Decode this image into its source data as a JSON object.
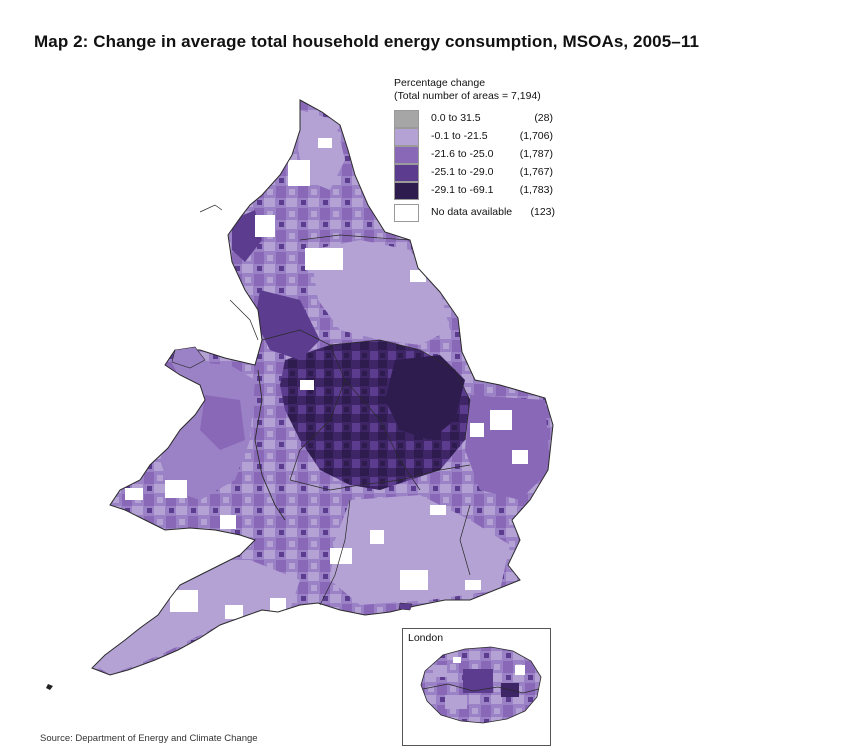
{
  "title": "Map 2: Change in average total household energy consumption, MSOAs, 2005–11",
  "legend": {
    "heading_line1": "Percentage change",
    "heading_line2": "(Total number of areas = 7,194)",
    "items": [
      {
        "range": "0.0 to 31.5",
        "count": "(28)",
        "color": "#a6a6a6"
      },
      {
        "range": "-0.1 to -21.5",
        "count": "(1,706)",
        "color": "#b3a2d3"
      },
      {
        "range": "-21.6 to -25.0",
        "count": "(1,787)",
        "color": "#8a68b8"
      },
      {
        "range": "-25.1 to -29.0",
        "count": "(1,767)",
        "color": "#5c3c8e"
      },
      {
        "range": "-29.1 to -69.1",
        "count": "(1,783)",
        "color": "#2f1c4f"
      }
    ],
    "no_data": {
      "range": "No data available",
      "count": "(123)",
      "color": "#ffffff"
    }
  },
  "inset": {
    "label": "London"
  },
  "source": "Source: Department of Energy and Climate Change"
}
